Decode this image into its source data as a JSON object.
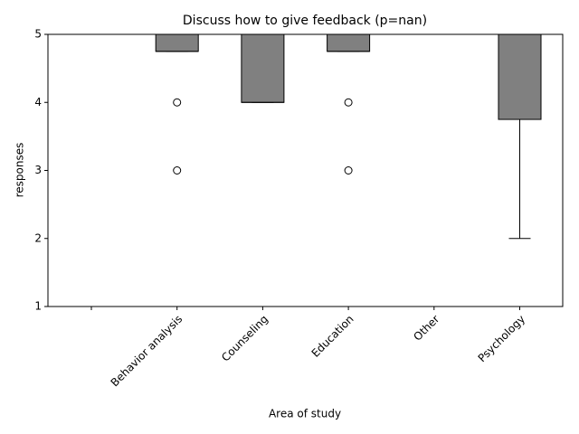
{
  "chart_data": {
    "type": "box",
    "title": "Discuss how to give feedback (p=nan)",
    "x_label": "Area of study",
    "y_label": "responses",
    "categories": [
      null,
      "Behavior analysis",
      "Counseling",
      "Education",
      "Other",
      "Psychology"
    ],
    "whislo": [
      null,
      4.75,
      4,
      4.75,
      5,
      2
    ],
    "q1": [
      null,
      4.75,
      4,
      4.75,
      5,
      3.75
    ],
    "median": [
      null,
      4.75,
      4,
      4.75,
      5,
      5
    ],
    "q3": [
      null,
      5,
      5,
      5,
      5,
      5
    ],
    "whishi": [
      null,
      5,
      5,
      5,
      5,
      5
    ],
    "outliers": [
      [],
      [
        4,
        3
      ],
      [],
      [
        4,
        3
      ],
      [],
      []
    ],
    "color": "#808080",
    "ylim": [
      1,
      5
    ],
    "yticks": [
      1,
      2,
      3,
      4,
      5
    ]
  }
}
